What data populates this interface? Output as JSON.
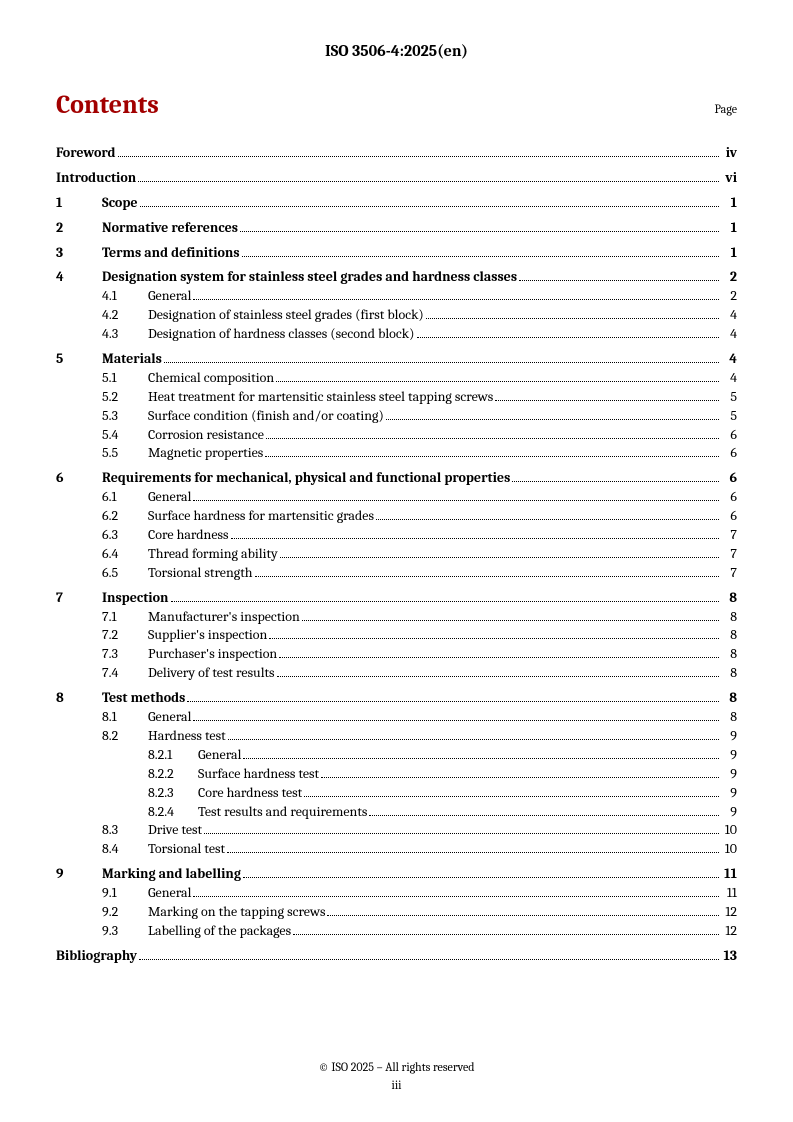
{
  "doc_id": "ISO 3506-4:2025(en)",
  "header": {
    "contents_title": "Contents",
    "page_label": "Page"
  },
  "colors": {
    "accent": "#a20000",
    "text": "#000000",
    "background": "#ffffff"
  },
  "typography": {
    "body_font": "Cambria",
    "body_size_pt": 10.5,
    "title_size_pt": 20,
    "docid_size_pt": 12
  },
  "front_matter": [
    {
      "title": "Foreword",
      "page": "iv"
    },
    {
      "title": "Introduction",
      "page": "vi"
    }
  ],
  "sections": [
    {
      "num": "1",
      "title": "Scope",
      "page": "1",
      "subs": []
    },
    {
      "num": "2",
      "title": "Normative references",
      "page": "1",
      "subs": []
    },
    {
      "num": "3",
      "title": "Terms and definitions",
      "page": "1",
      "subs": []
    },
    {
      "num": "4",
      "title": "Designation system for stainless steel grades and hardness classes",
      "page": "2",
      "subs": [
        {
          "num": "4.1",
          "title": "General",
          "page": "2"
        },
        {
          "num": "4.2",
          "title": "Designation of stainless steel grades (first block)",
          "page": "4"
        },
        {
          "num": "4.3",
          "title": "Designation of hardness classes (second block)",
          "page": "4"
        }
      ]
    },
    {
      "num": "5",
      "title": "Materials",
      "page": "4",
      "subs": [
        {
          "num": "5.1",
          "title": "Chemical composition",
          "page": "4"
        },
        {
          "num": "5.2",
          "title": "Heat treatment for martensitic stainless steel tapping screws",
          "page": "5"
        },
        {
          "num": "5.3",
          "title": "Surface condition (finish and/or coating)",
          "page": "5"
        },
        {
          "num": "5.4",
          "title": "Corrosion resistance",
          "page": "6"
        },
        {
          "num": "5.5",
          "title": "Magnetic properties",
          "page": "6"
        }
      ]
    },
    {
      "num": "6",
      "title": "Requirements for mechanical, physical and functional properties",
      "page": "6",
      "subs": [
        {
          "num": "6.1",
          "title": "General",
          "page": "6"
        },
        {
          "num": "6.2",
          "title": "Surface hardness for martensitic grades",
          "page": "6"
        },
        {
          "num": "6.3",
          "title": "Core hardness",
          "page": "7"
        },
        {
          "num": "6.4",
          "title": "Thread forming ability",
          "page": "7"
        },
        {
          "num": "6.5",
          "title": "Torsional strength",
          "page": "7"
        }
      ]
    },
    {
      "num": "7",
      "title": "Inspection",
      "page": "8",
      "subs": [
        {
          "num": "7.1",
          "title": "Manufacturer's inspection",
          "page": "8"
        },
        {
          "num": "7.2",
          "title": "Supplier's inspection",
          "page": "8"
        },
        {
          "num": "7.3",
          "title": "Purchaser's inspection",
          "page": "8"
        },
        {
          "num": "7.4",
          "title": "Delivery of test results",
          "page": "8"
        }
      ]
    },
    {
      "num": "8",
      "title": "Test methods",
      "page": "8",
      "subs": [
        {
          "num": "8.1",
          "title": "General",
          "page": "8"
        },
        {
          "num": "8.2",
          "title": "Hardness test",
          "page": "9",
          "subs": [
            {
              "num": "8.2.1",
              "title": "General",
              "page": "9"
            },
            {
              "num": "8.2.2",
              "title": "Surface hardness test",
              "page": "9"
            },
            {
              "num": "8.2.3",
              "title": "Core hardness test",
              "page": "9"
            },
            {
              "num": "8.2.4",
              "title": "Test results and requirements",
              "page": "9"
            }
          ]
        },
        {
          "num": "8.3",
          "title": "Drive test",
          "page": "10"
        },
        {
          "num": "8.4",
          "title": "Torsional test",
          "page": "10"
        }
      ]
    },
    {
      "num": "9",
      "title": "Marking and labelling",
      "page": "11",
      "subs": [
        {
          "num": "9.1",
          "title": "General",
          "page": "11"
        },
        {
          "num": "9.2",
          "title": "Marking on the tapping screws",
          "page": "12"
        },
        {
          "num": "9.3",
          "title": "Labelling of the packages",
          "page": "12"
        }
      ]
    }
  ],
  "back_matter": [
    {
      "title": "Bibliography",
      "page": "13"
    }
  ],
  "footer": {
    "copyright": "© ISO 2025 – All rights reserved",
    "page_number": "iii"
  }
}
